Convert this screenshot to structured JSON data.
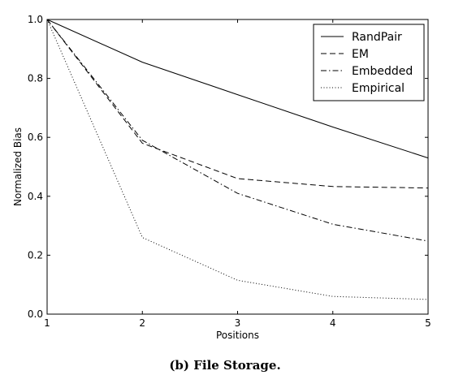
{
  "chart_data": {
    "type": "line",
    "x": [
      1,
      2,
      3,
      4,
      5
    ],
    "xlabel": "Positions",
    "ylabel": "Normalized Bias",
    "xlim": [
      1,
      5
    ],
    "ylim": [
      0.0,
      1.0
    ],
    "xticks": [
      "1",
      "2",
      "3",
      "4",
      "5"
    ],
    "yticks": [
      "0.0",
      "0.2",
      "0.4",
      "0.6",
      "0.8",
      "1.0"
    ],
    "grid": false,
    "legend_position": "top-right",
    "series": [
      {
        "name": "RandPair",
        "values": [
          1.0,
          0.855,
          0.745,
          0.635,
          0.53
        ],
        "style": "solid"
      },
      {
        "name": "EM",
        "values": [
          1.0,
          0.58,
          0.46,
          0.433,
          0.428
        ],
        "style": "dashed"
      },
      {
        "name": "Embedded",
        "values": [
          1.0,
          0.59,
          0.41,
          0.305,
          0.248
        ],
        "style": "dashdot"
      },
      {
        "name": "Empirical",
        "values": [
          1.0,
          0.26,
          0.115,
          0.06,
          0.05
        ],
        "style": "dotted"
      }
    ]
  },
  "caption": "(b) File Storage.",
  "colors": {
    "line": "#000000",
    "background": "#ffffff"
  }
}
